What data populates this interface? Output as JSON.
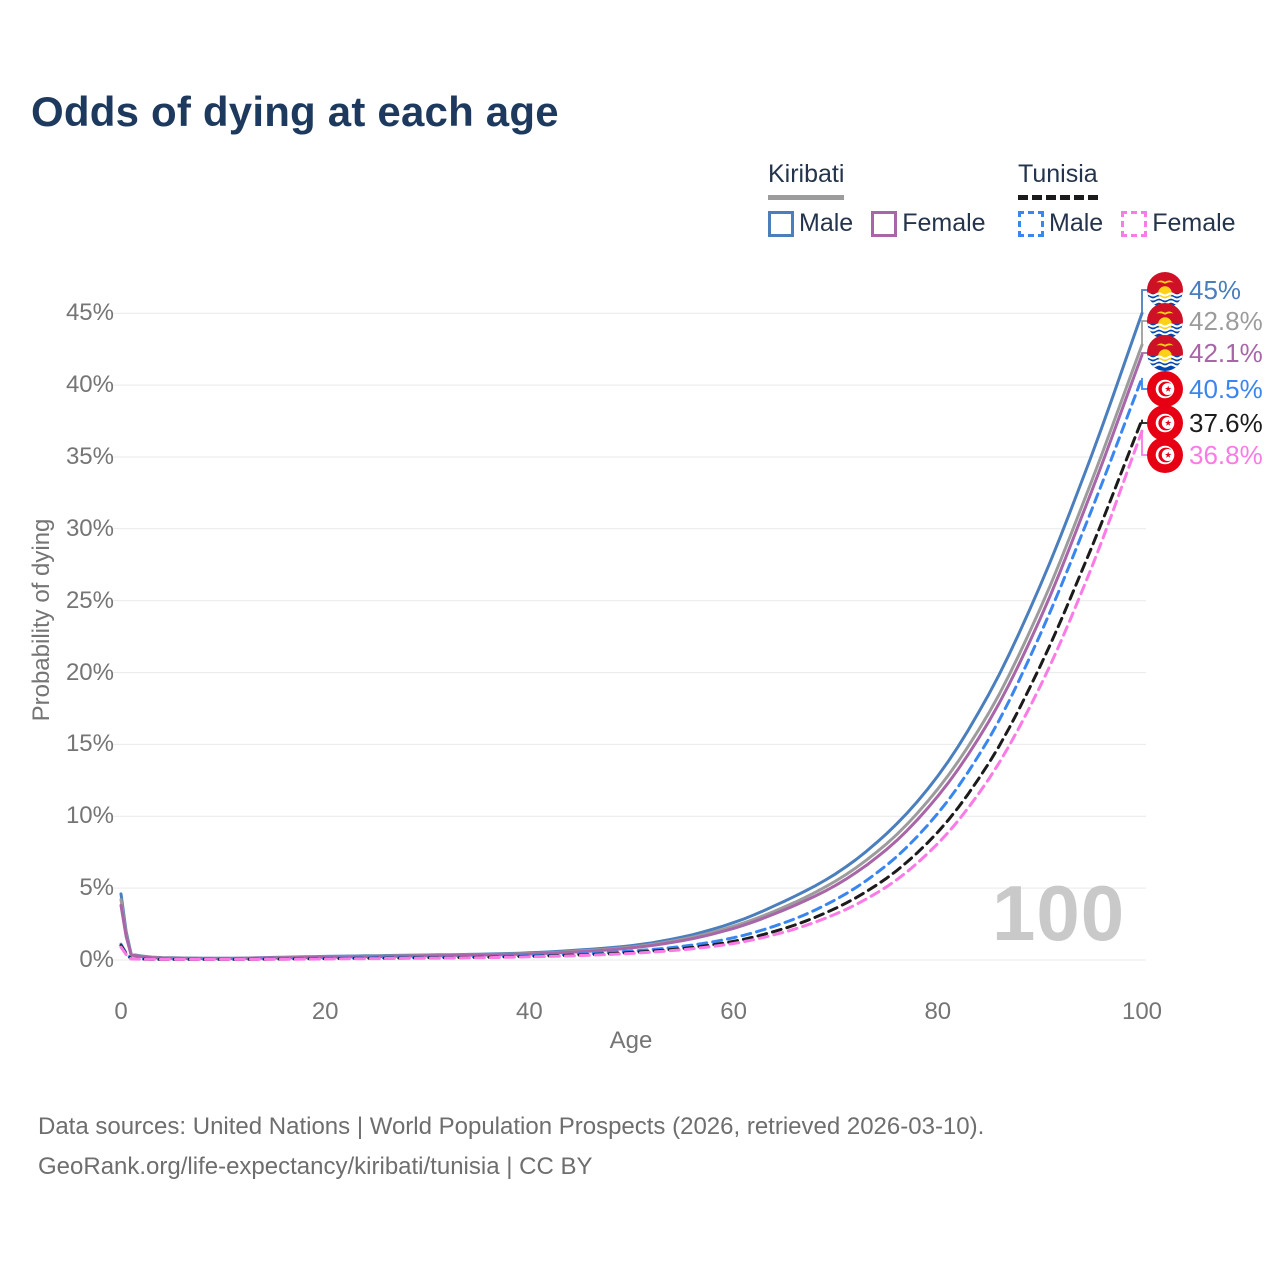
{
  "title": "Odds of dying at each age",
  "watermark": "100",
  "legend": {
    "groups": [
      {
        "label": "Kiribati",
        "line_style": "solid",
        "underline_color": "#9c9c9c",
        "items": [
          {
            "label": "Male",
            "color": "#4a7ebc"
          },
          {
            "label": "Female",
            "color": "#a866a8"
          }
        ]
      },
      {
        "label": "Tunisia",
        "line_style": "dashed",
        "underline_color": "#1b1b1b",
        "items": [
          {
            "label": "Male",
            "color": "#3a86f0"
          },
          {
            "label": "Female",
            "color": "#fa7ae6"
          }
        ]
      }
    ]
  },
  "chart_data": {
    "type": "line",
    "title": "Odds of dying at each age",
    "xlabel": "Age",
    "ylabel": "Probability of dying",
    "xlim": [
      0,
      100
    ],
    "ylim": [
      0,
      47
    ],
    "grid": "horizontal-only",
    "legend_position": "top-right",
    "x_ticks": [
      0,
      20,
      40,
      60,
      80,
      100
    ],
    "y_ticks": [
      {
        "value": 0,
        "label": "0%"
      },
      {
        "value": 5,
        "label": "5%"
      },
      {
        "value": 10,
        "label": "10%"
      },
      {
        "value": 15,
        "label": "15%"
      },
      {
        "value": 20,
        "label": "20%"
      },
      {
        "value": 25,
        "label": "25%"
      },
      {
        "value": 30,
        "label": "30%"
      },
      {
        "value": 35,
        "label": "35%"
      },
      {
        "value": 40,
        "label": "40%"
      },
      {
        "value": 45,
        "label": "45%"
      }
    ],
    "ages": [
      0,
      1,
      5,
      10,
      15,
      20,
      25,
      30,
      35,
      40,
      45,
      50,
      55,
      60,
      65,
      70,
      75,
      80,
      85,
      90,
      95,
      100
    ],
    "series": [
      {
        "name": "Kiribati Male",
        "country": "Kiribati",
        "sex": "Male",
        "flag": "kiribati",
        "style": "solid",
        "color": "#4a7ebc",
        "end_label": "45%",
        "values": [
          4.6,
          0.4,
          0.15,
          0.12,
          0.18,
          0.25,
          0.3,
          0.35,
          0.4,
          0.5,
          0.7,
          1.0,
          1.6,
          2.6,
          4.1,
          6.0,
          8.8,
          12.8,
          18.5,
          26.0,
          35.0,
          45.0
        ]
      },
      {
        "name": "Kiribati Both sexes",
        "country": "Kiribati",
        "sex": "All",
        "flag": "kiribati",
        "style": "solid",
        "color": "#9c9c9c",
        "end_label": "42.8%",
        "values": [
          4.2,
          0.37,
          0.13,
          0.11,
          0.16,
          0.22,
          0.27,
          0.32,
          0.37,
          0.45,
          0.63,
          0.9,
          1.45,
          2.35,
          3.7,
          5.5,
          8.1,
          11.9,
          17.2,
          24.4,
          33.2,
          42.8
        ]
      },
      {
        "name": "Kiribati Female",
        "country": "Kiribati",
        "sex": "Female",
        "flag": "kiribati",
        "style": "solid",
        "color": "#a866a8",
        "end_label": "42.1%",
        "values": [
          3.8,
          0.34,
          0.12,
          0.1,
          0.14,
          0.19,
          0.24,
          0.29,
          0.34,
          0.42,
          0.58,
          0.84,
          1.35,
          2.2,
          3.5,
          5.2,
          7.7,
          11.4,
          16.6,
          23.7,
          32.5,
          42.1
        ]
      },
      {
        "name": "Tunisia Male",
        "country": "Tunisia",
        "sex": "Male",
        "flag": "tunisia",
        "style": "dashed",
        "color": "#3a86f0",
        "end_label": "40.5%",
        "values": [
          1.1,
          0.09,
          0.05,
          0.05,
          0.08,
          0.12,
          0.15,
          0.18,
          0.22,
          0.3,
          0.42,
          0.62,
          0.95,
          1.55,
          2.6,
          4.2,
          6.6,
          10.2,
          15.4,
          22.6,
          31.2,
          40.5
        ]
      },
      {
        "name": "Tunisia Both sexes",
        "country": "Tunisia",
        "sex": "All",
        "flag": "tunisia",
        "style": "dashed",
        "color": "#1b1b1b",
        "end_label": "37.6%",
        "values": [
          1.0,
          0.08,
          0.04,
          0.04,
          0.06,
          0.09,
          0.12,
          0.15,
          0.18,
          0.25,
          0.35,
          0.52,
          0.8,
          1.3,
          2.2,
          3.6,
          5.7,
          8.9,
          13.7,
          20.4,
          28.6,
          37.6
        ]
      },
      {
        "name": "Tunisia Female",
        "country": "Tunisia",
        "sex": "Female",
        "flag": "tunisia",
        "style": "dashed",
        "color": "#fa7ae6",
        "end_label": "36.8%",
        "values": [
          0.9,
          0.07,
          0.04,
          0.04,
          0.05,
          0.07,
          0.1,
          0.13,
          0.16,
          0.22,
          0.31,
          0.46,
          0.72,
          1.15,
          1.95,
          3.2,
          5.1,
          8.1,
          12.6,
          19.0,
          27.2,
          36.8
        ]
      }
    ]
  },
  "footer": {
    "line1": "Data sources: United Nations | World Population Prospects (2026, retrieved 2026-03-10).",
    "line2": "GeoRank.org/life-expectancy/kiribati/tunisia | CC BY"
  }
}
